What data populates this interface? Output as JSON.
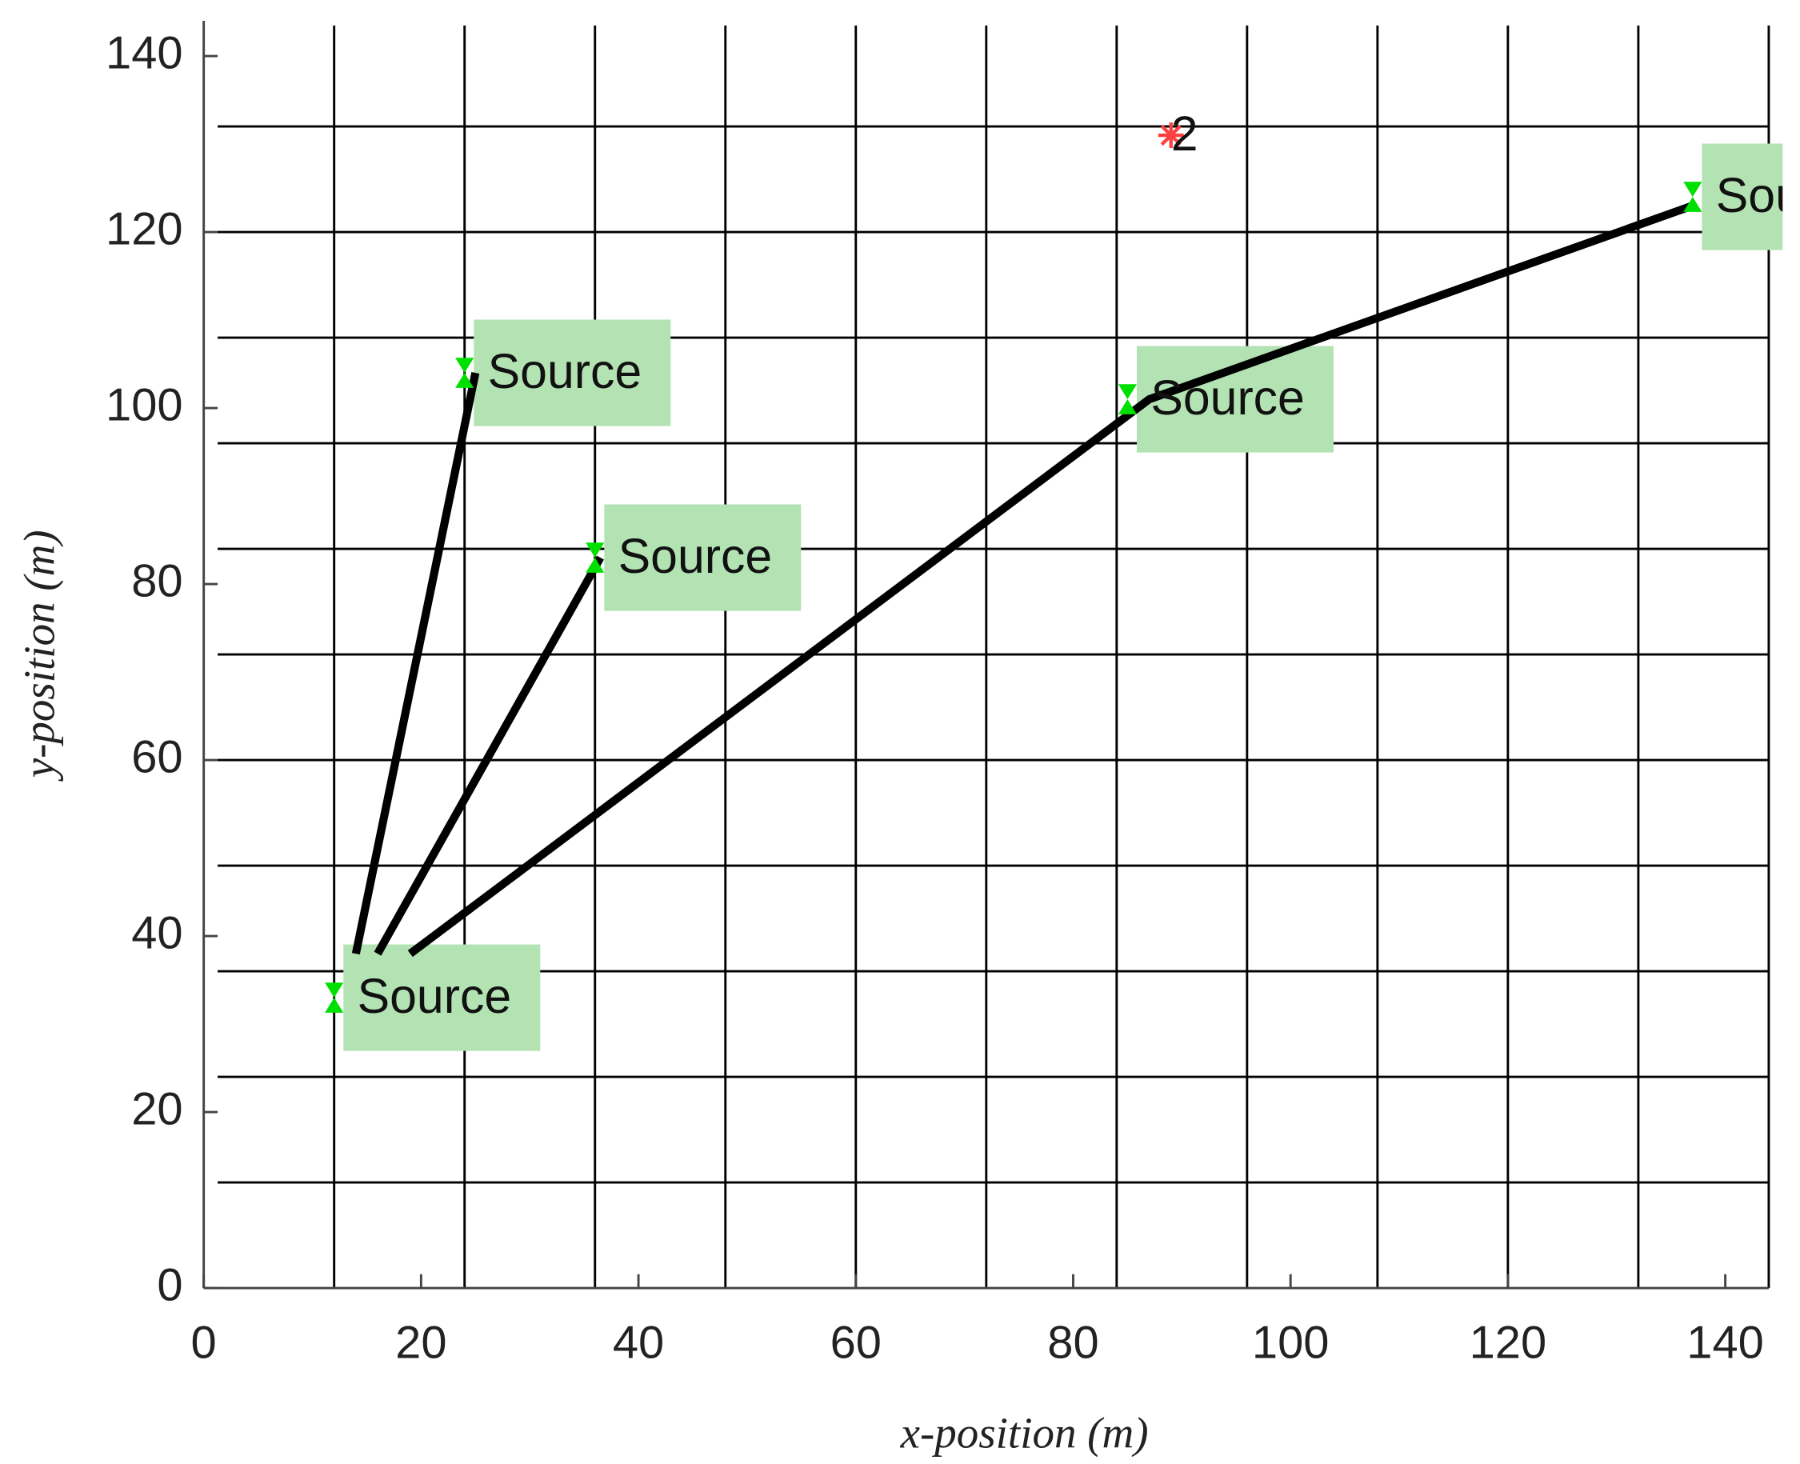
{
  "chart_data": {
    "type": "scatter",
    "x_label": "x-position (m)",
    "y_label": "y-position (m)",
    "xlim": [
      0,
      144
    ],
    "ylim": [
      0,
      144
    ],
    "xticks": [
      0,
      20,
      40,
      60,
      80,
      100,
      120,
      140
    ],
    "yticks": [
      0,
      20,
      40,
      60,
      80,
      100,
      120,
      140
    ],
    "xgrid": [
      12,
      24,
      36,
      48,
      60,
      72,
      84,
      96,
      108,
      120,
      132,
      144
    ],
    "ygrid": [
      12,
      24,
      36,
      48,
      60,
      72,
      84,
      96,
      108,
      120,
      132
    ],
    "grid_color": "#000000",
    "sources": {
      "x": [
        12,
        24,
        36,
        85,
        137
      ],
      "y": [
        33,
        104,
        83,
        101,
        124
      ],
      "labels": [
        "Source",
        "Source",
        "Source",
        "Source",
        "Source"
      ],
      "color": "#00e000",
      "label_background": "#b3e2b3"
    },
    "targets": {
      "x": [
        89
      ],
      "y": [
        131
      ],
      "labels": [
        "2"
      ],
      "color": "#ff4040"
    },
    "edges": [
      {
        "x": [
          14,
          25
        ],
        "y": [
          38,
          104
        ]
      },
      {
        "x": [
          16,
          36.5
        ],
        "y": [
          38,
          83
        ]
      },
      {
        "x": [
          19,
          87,
          137
        ],
        "y": [
          38,
          101,
          123
        ]
      }
    ],
    "edge_color": "#000000"
  }
}
